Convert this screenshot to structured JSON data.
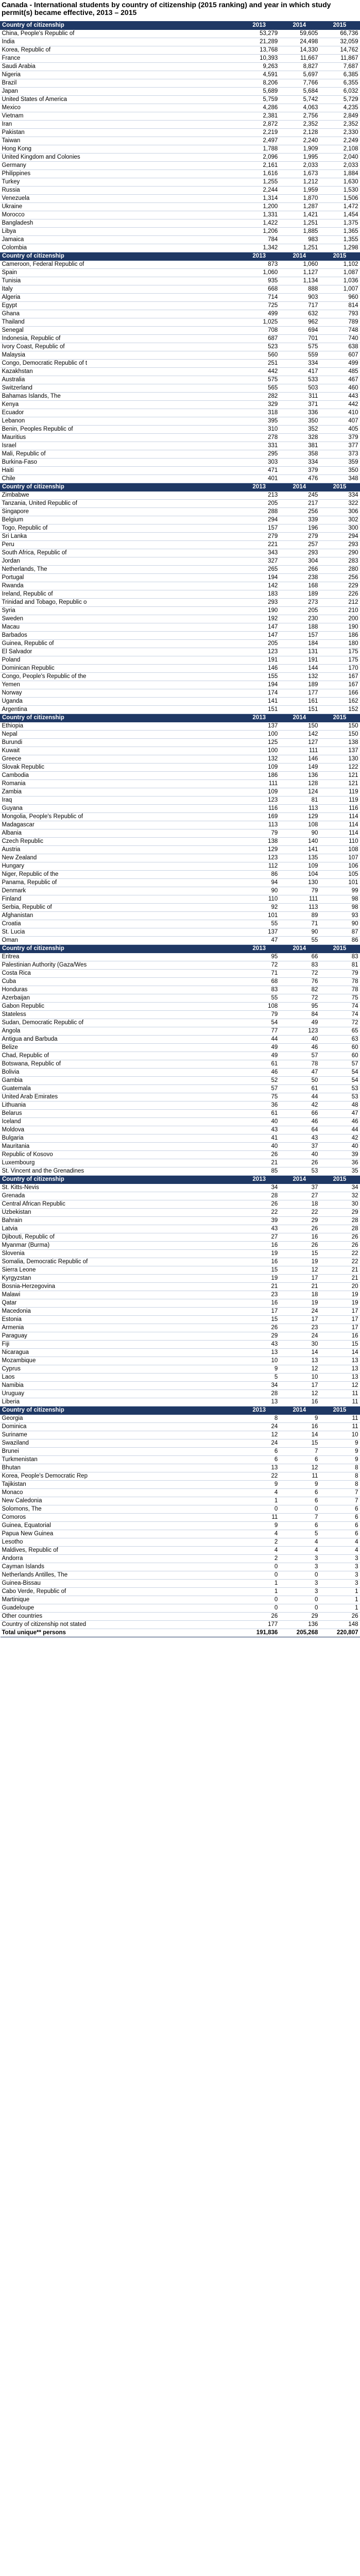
{
  "title": "Canada - International students by country of citizenship (2015 ranking) and year in which study permit(s) became effective, 2013 – 2015",
  "header": {
    "country": "Country of citizenship",
    "y2013": "2013",
    "y2014": "2014",
    "y2015": "2015"
  },
  "sections": [
    {
      "rows": [
        [
          "China, People's Republic of",
          "53,279",
          "59,605",
          "66,736"
        ],
        [
          "India",
          "21,289",
          "24,498",
          "32,059"
        ],
        [
          "Korea, Republic of",
          "13,768",
          "14,330",
          "14,762"
        ],
        [
          "France",
          "10,393",
          "11,667",
          "11,867"
        ],
        [
          "Saudi Arabia",
          "9,263",
          "8,827",
          "7,687"
        ],
        [
          "Nigeria",
          "4,591",
          "5,697",
          "6,385"
        ],
        [
          "Brazil",
          "8,206",
          "7,766",
          "6,355"
        ],
        [
          "Japan",
          "5,689",
          "5,684",
          "6,032"
        ],
        [
          "United States of America",
          "5,759",
          "5,742",
          "5,729"
        ],
        [
          "Mexico",
          "4,286",
          "4,063",
          "4,235"
        ],
        [
          "Vietnam",
          "2,381",
          "2,756",
          "2,849"
        ],
        [
          "Iran",
          "2,872",
          "2,352",
          "2,352"
        ],
        [
          "Pakistan",
          "2,219",
          "2,128",
          "2,330"
        ],
        [
          "Taiwan",
          "2,497",
          "2,240",
          "2,249"
        ],
        [
          "Hong Kong",
          "1,788",
          "1,909",
          "2,108"
        ],
        [
          "United Kingdom and Colonies",
          "2,096",
          "1,995",
          "2,040"
        ],
        [
          "Germany",
          "2,161",
          "2,033",
          "2,033"
        ],
        [
          "Philippines",
          "1,616",
          "1,673",
          "1,884"
        ],
        [
          "Turkey",
          "1,255",
          "1,212",
          "1,630"
        ],
        [
          "Russia",
          "2,244",
          "1,959",
          "1,530"
        ],
        [
          "Venezuela",
          "1,314",
          "1,870",
          "1,506"
        ],
        [
          "Ukraine",
          "1,200",
          "1,287",
          "1,472"
        ],
        [
          "Morocco",
          "1,331",
          "1,421",
          "1,454"
        ],
        [
          "Bangladesh",
          "1,422",
          "1,251",
          "1,375"
        ],
        [
          "Libya",
          "1,206",
          "1,885",
          "1,365"
        ],
        [
          "Jamaica",
          "784",
          "983",
          "1,355"
        ],
        [
          "Colombia",
          "1,342",
          "1,251",
          "1,298"
        ]
      ]
    },
    {
      "rows": [
        [
          "Cameroon, Federal Republic of",
          "873",
          "1,060",
          "1,102"
        ],
        [
          "Spain",
          "1,060",
          "1,127",
          "1,087"
        ],
        [
          "Tunisia",
          "935",
          "1,134",
          "1,036"
        ],
        [
          "Italy",
          "668",
          "888",
          "1,007"
        ],
        [
          "Algeria",
          "714",
          "903",
          "960"
        ],
        [
          "Egypt",
          "725",
          "717",
          "814"
        ],
        [
          "Ghana",
          "499",
          "632",
          "793"
        ],
        [
          "Thailand",
          "1,025",
          "962",
          "789"
        ],
        [
          "Senegal",
          "708",
          "694",
          "748"
        ],
        [
          "Indonesia, Republic of",
          "687",
          "701",
          "740"
        ],
        [
          "Ivory Coast, Republic of",
          "523",
          "575",
          "638"
        ],
        [
          "Malaysia",
          "560",
          "559",
          "607"
        ],
        [
          "Congo, Democratic Republic of t",
          "251",
          "334",
          "499"
        ],
        [
          "Kazakhstan",
          "442",
          "417",
          "485"
        ],
        [
          "Australia",
          "575",
          "533",
          "467"
        ],
        [
          "Switzerland",
          "565",
          "503",
          "460"
        ],
        [
          "Bahamas Islands, The",
          "282",
          "311",
          "443"
        ],
        [
          "Kenya",
          "329",
          "371",
          "442"
        ],
        [
          "Ecuador",
          "318",
          "336",
          "410"
        ],
        [
          "Lebanon",
          "395",
          "350",
          "407"
        ],
        [
          "Benin, Peoples Republic of",
          "310",
          "352",
          "405"
        ],
        [
          "Mauritius",
          "278",
          "328",
          "379"
        ],
        [
          "Israel",
          "331",
          "381",
          "377"
        ],
        [
          "Mali, Republic of",
          "295",
          "358",
          "373"
        ],
        [
          "Burkina-Faso",
          "303",
          "334",
          "359"
        ],
        [
          "Haiti",
          "471",
          "379",
          "350"
        ],
        [
          "Chile",
          "401",
          "476",
          "348"
        ]
      ]
    },
    {
      "rows": [
        [
          "Zimbabwe",
          "213",
          "245",
          "334"
        ],
        [
          "Tanzania, United Republic of",
          "205",
          "217",
          "322"
        ],
        [
          "Singapore",
          "288",
          "256",
          "306"
        ],
        [
          "Belgium",
          "294",
          "339",
          "302"
        ],
        [
          "Togo, Republic of",
          "157",
          "196",
          "300"
        ],
        [
          "Sri Lanka",
          "279",
          "279",
          "294"
        ],
        [
          "Peru",
          "221",
          "257",
          "293"
        ],
        [
          "South Africa, Republic of",
          "343",
          "293",
          "290"
        ],
        [
          "Jordan",
          "327",
          "304",
          "283"
        ],
        [
          "Netherlands, The",
          "265",
          "266",
          "280"
        ],
        [
          "Portugal",
          "194",
          "238",
          "256"
        ],
        [
          "Rwanda",
          "142",
          "168",
          "229"
        ],
        [
          "Ireland, Republic of",
          "183",
          "189",
          "226"
        ],
        [
          "Trinidad and Tobago, Republic o",
          "293",
          "273",
          "212"
        ],
        [
          "Syria",
          "190",
          "205",
          "210"
        ],
        [
          "Sweden",
          "192",
          "230",
          "200"
        ],
        [
          "Macau",
          "147",
          "188",
          "190"
        ],
        [
          "Barbados",
          "147",
          "157",
          "186"
        ],
        [
          "Guinea, Republic of",
          "205",
          "184",
          "180"
        ],
        [
          "El Salvador",
          "123",
          "131",
          "175"
        ],
        [
          "Poland",
          "191",
          "191",
          "175"
        ],
        [
          "Dominican Republic",
          "146",
          "144",
          "170"
        ],
        [
          "Congo, People's Republic of the",
          "155",
          "132",
          "167"
        ],
        [
          "Yemen",
          "194",
          "189",
          "167"
        ],
        [
          "Norway",
          "174",
          "177",
          "166"
        ],
        [
          "Uganda",
          "141",
          "161",
          "162"
        ],
        [
          "Argentina",
          "151",
          "151",
          "152"
        ]
      ]
    },
    {
      "rows": [
        [
          "Ethiopia",
          "137",
          "150",
          "150"
        ],
        [
          "Nepal",
          "100",
          "142",
          "150"
        ],
        [
          "Burundi",
          "125",
          "127",
          "138"
        ],
        [
          "Kuwait",
          "100",
          "111",
          "137"
        ],
        [
          "Greece",
          "132",
          "146",
          "130"
        ],
        [
          "Slovak Republic",
          "109",
          "149",
          "122"
        ],
        [
          "Cambodia",
          "186",
          "136",
          "121"
        ],
        [
          "Romania",
          "111",
          "128",
          "121"
        ],
        [
          "Zambia",
          "109",
          "124",
          "119"
        ],
        [
          "Iraq",
          "123",
          "81",
          "119"
        ],
        [
          "Guyana",
          "116",
          "113",
          "116"
        ],
        [
          "Mongolia, People's Republic of",
          "169",
          "129",
          "114"
        ],
        [
          "Madagascar",
          "113",
          "108",
          "114"
        ],
        [
          "Albania",
          "79",
          "90",
          "114"
        ],
        [
          "Czech Republic",
          "138",
          "140",
          "110"
        ],
        [
          "Austria",
          "129",
          "141",
          "108"
        ],
        [
          "New Zealand",
          "123",
          "135",
          "107"
        ],
        [
          "Hungary",
          "112",
          "109",
          "106"
        ],
        [
          "Niger, Republic of the",
          "86",
          "104",
          "105"
        ],
        [
          "Panama, Republic of",
          "94",
          "130",
          "101"
        ],
        [
          "Denmark",
          "90",
          "79",
          "99"
        ],
        [
          "Finland",
          "110",
          "111",
          "98"
        ],
        [
          "Serbia, Republic of",
          "92",
          "113",
          "98"
        ],
        [
          "Afghanistan",
          "101",
          "89",
          "93"
        ],
        [
          "Croatia",
          "55",
          "71",
          "90"
        ],
        [
          "St. Lucia",
          "137",
          "90",
          "87"
        ],
        [
          "Oman",
          "47",
          "55",
          "86"
        ]
      ]
    },
    {
      "rows": [
        [
          "Eritrea",
          "95",
          "66",
          "83"
        ],
        [
          "Palestinian Authority (Gaza/Wes",
          "72",
          "83",
          "81"
        ],
        [
          "Costa Rica",
          "71",
          "72",
          "79"
        ],
        [
          "Cuba",
          "68",
          "76",
          "78"
        ],
        [
          "Honduras",
          "83",
          "82",
          "78"
        ],
        [
          "Azerbaijan",
          "55",
          "72",
          "75"
        ],
        [
          "Gabon Republic",
          "108",
          "95",
          "74"
        ],
        [
          "Stateless",
          "79",
          "84",
          "74"
        ],
        [
          "Sudan, Democratic Republic of",
          "54",
          "49",
          "72"
        ],
        [
          "Angola",
          "77",
          "123",
          "65"
        ],
        [
          "Antigua and Barbuda",
          "44",
          "40",
          "63"
        ],
        [
          "Belize",
          "49",
          "46",
          "60"
        ],
        [
          "Chad, Republic of",
          "49",
          "57",
          "60"
        ],
        [
          "Botswana, Republic of",
          "61",
          "78",
          "57"
        ],
        [
          "Bolivia",
          "46",
          "47",
          "54"
        ],
        [
          "Gambia",
          "52",
          "50",
          "54"
        ],
        [
          "Guatemala",
          "57",
          "61",
          "53"
        ],
        [
          "United Arab Emirates",
          "75",
          "44",
          "53"
        ],
        [
          "Lithuania",
          "36",
          "42",
          "48"
        ],
        [
          "Belarus",
          "61",
          "66",
          "47"
        ],
        [
          "Iceland",
          "40",
          "46",
          "46"
        ],
        [
          "Moldova",
          "43",
          "64",
          "44"
        ],
        [
          "Bulgaria",
          "41",
          "43",
          "42"
        ],
        [
          "Mauritania",
          "40",
          "37",
          "40"
        ],
        [
          "Republic of Kosovo",
          "26",
          "40",
          "39"
        ],
        [
          "Luxembourg",
          "21",
          "26",
          "36"
        ],
        [
          "St. Vincent and the Grenadines",
          "85",
          "53",
          "35"
        ]
      ]
    },
    {
      "rows": [
        [
          "St. Kitts-Nevis",
          "34",
          "37",
          "34"
        ],
        [
          "Grenada",
          "28",
          "27",
          "32"
        ],
        [
          "Central African Republic",
          "26",
          "18",
          "30"
        ],
        [
          "Uzbekistan",
          "22",
          "22",
          "29"
        ],
        [
          "Bahrain",
          "39",
          "29",
          "28"
        ],
        [
          "Latvia",
          "43",
          "26",
          "28"
        ],
        [
          "Djibouti, Republic of",
          "27",
          "16",
          "26"
        ],
        [
          "Myanmar (Burma)",
          "16",
          "26",
          "26"
        ],
        [
          "Slovenia",
          "19",
          "15",
          "22"
        ],
        [
          "Somalia, Democratic Republic of",
          "16",
          "19",
          "22"
        ],
        [
          "Sierra Leone",
          "15",
          "12",
          "21"
        ],
        [
          "Kyrgyzstan",
          "19",
          "17",
          "21"
        ],
        [
          "Bosnia-Herzegovina",
          "21",
          "21",
          "20"
        ],
        [
          "Malawi",
          "23",
          "18",
          "19"
        ],
        [
          "Qatar",
          "16",
          "19",
          "19"
        ],
        [
          "Macedonia",
          "17",
          "24",
          "17"
        ],
        [
          "Estonia",
          "15",
          "17",
          "17"
        ],
        [
          "Armenia",
          "26",
          "23",
          "17"
        ],
        [
          "Paraguay",
          "29",
          "24",
          "16"
        ],
        [
          "Fiji",
          "43",
          "30",
          "15"
        ],
        [
          "Nicaragua",
          "13",
          "14",
          "14"
        ],
        [
          "Mozambique",
          "10",
          "13",
          "13"
        ],
        [
          "Cyprus",
          "9",
          "12",
          "13"
        ],
        [
          "Laos",
          "5",
          "10",
          "13"
        ],
        [
          "Namibia",
          "34",
          "17",
          "12"
        ],
        [
          "Uruguay",
          "28",
          "12",
          "11"
        ],
        [
          "Liberia",
          "13",
          "16",
          "11"
        ]
      ]
    },
    {
      "rows": [
        [
          "Georgia",
          "8",
          "9",
          "11"
        ],
        [
          "Dominica",
          "24",
          "16",
          "11"
        ],
        [
          "Suriname",
          "12",
          "14",
          "10"
        ],
        [
          "Swaziland",
          "24",
          "15",
          "9"
        ],
        [
          "Brunei",
          "6",
          "7",
          "9"
        ],
        [
          "Turkmenistan",
          "6",
          "6",
          "9"
        ],
        [
          "Bhutan",
          "13",
          "12",
          "8"
        ],
        [
          "Korea, People's Democratic Rep",
          "22",
          "11",
          "8"
        ],
        [
          "Tajikistan",
          "9",
          "9",
          "8"
        ],
        [
          "Monaco",
          "4",
          "6",
          "7"
        ],
        [
          "New Caledonia",
          "1",
          "6",
          "7"
        ],
        [
          "Solomons, The",
          "0",
          "0",
          "6"
        ],
        [
          "Comoros",
          "11",
          "7",
          "6"
        ],
        [
          "Guinea, Equatorial",
          "9",
          "6",
          "6"
        ],
        [
          "Papua New Guinea",
          "4",
          "5",
          "6"
        ],
        [
          "Lesotho",
          "2",
          "4",
          "4"
        ],
        [
          "Maldives, Republic of",
          "4",
          "4",
          "4"
        ],
        [
          "Andorra",
          "2",
          "3",
          "3"
        ],
        [
          "Cayman Islands",
          "0",
          "3",
          "3"
        ],
        [
          "Netherlands Antilles, The",
          "0",
          "0",
          "3"
        ],
        [
          "Guinea-Bissau",
          "1",
          "3",
          "3"
        ],
        [
          "Cabo Verde, Republic of",
          "1",
          "3",
          "1"
        ],
        [
          "Martinique",
          "0",
          "0",
          "1"
        ],
        [
          "Guadeloupe",
          "0",
          "0",
          "1"
        ],
        [
          "Other countries",
          "26",
          "29",
          "26"
        ],
        [
          "Country of citizenship not stated",
          "177",
          "136",
          "148"
        ]
      ]
    }
  ],
  "total": {
    "label": "Total unique** persons",
    "y2013": "191,836",
    "y2014": "205,268",
    "y2015": "220,807"
  }
}
